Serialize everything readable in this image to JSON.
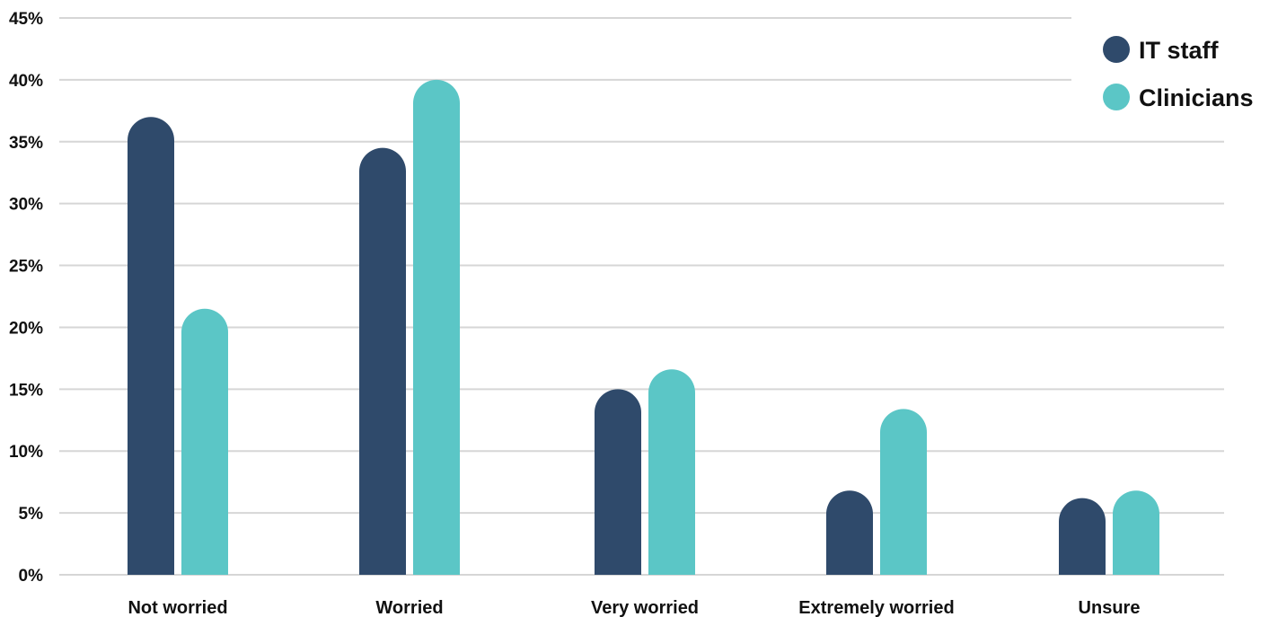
{
  "chart_data": {
    "type": "bar",
    "categories": [
      "Not worried",
      "Worried",
      "Very worried",
      "Extremely worried",
      "Unsure"
    ],
    "series": [
      {
        "name": "IT staff",
        "color": "#2f4a6b",
        "values": [
          37,
          34.5,
          15,
          6.8,
          6.2
        ]
      },
      {
        "name": "Clinicians",
        "color": "#5bc6c6",
        "values": [
          21.5,
          40,
          16.6,
          13.4,
          6.8
        ]
      }
    ],
    "ylim": [
      0,
      45
    ],
    "yticks": [
      0,
      5,
      10,
      15,
      20,
      25,
      30,
      35,
      40,
      45
    ],
    "ytick_labels": [
      "0%",
      "5%",
      "10%",
      "15%",
      "20%",
      "25%",
      "30%",
      "35%",
      "40%",
      "45%"
    ],
    "grid": true,
    "legend_position": "top-right",
    "bar_style": "rounded-top",
    "title": "",
    "xlabel": "",
    "ylabel": ""
  }
}
